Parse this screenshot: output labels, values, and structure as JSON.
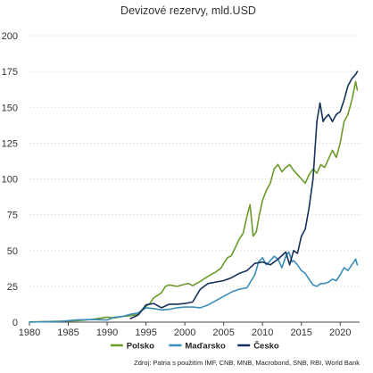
{
  "chart_data": {
    "type": "line",
    "title": "Devizové rezervy, mld.USD",
    "xlabel": "",
    "ylabel": "",
    "xlim": [
      1980,
      2022.5
    ],
    "ylim": [
      0,
      200
    ],
    "x_ticks": [
      1980,
      1985,
      1990,
      1995,
      2000,
      2005,
      2010,
      2015,
      2020
    ],
    "y_ticks": [
      0,
      25,
      50,
      75,
      100,
      125,
      150,
      175,
      200
    ],
    "grid": "horizontal",
    "legend_position": "bottom",
    "source": "Zdroj: Patria s použitím IMF, CNB, MNB, Macrobond, SNB, RBI, World Bank",
    "colors": {
      "Polsko": "#6a9a2a",
      "Maďarsko": "#3a8db8",
      "Česko": "#15305a"
    },
    "series": [
      {
        "name": "Polsko",
        "points": [
          [
            1980,
            0.1
          ],
          [
            1983,
            0.5
          ],
          [
            1986,
            1.0
          ],
          [
            1988,
            1.8
          ],
          [
            1990,
            3.5
          ],
          [
            1991,
            3.0
          ],
          [
            1992,
            4.0
          ],
          [
            1993,
            4.5
          ],
          [
            1994,
            5.5
          ],
          [
            1995,
            11.0
          ],
          [
            1995.5,
            13.0
          ],
          [
            1996,
            17.0
          ],
          [
            1997,
            20.5
          ],
          [
            1997.5,
            25.0
          ],
          [
            1998,
            26.0
          ],
          [
            1999,
            25.0
          ],
          [
            2000,
            26.5
          ],
          [
            2000.5,
            27.0
          ],
          [
            2001,
            25.5
          ],
          [
            2002,
            28.5
          ],
          [
            2003,
            32.0
          ],
          [
            2004,
            35.0
          ],
          [
            2004.7,
            38.0
          ],
          [
            2005,
            41.0
          ],
          [
            2005.5,
            45.0
          ],
          [
            2006,
            46.5
          ],
          [
            2006.5,
            52.0
          ],
          [
            2007,
            58.0
          ],
          [
            2007.5,
            62.0
          ],
          [
            2008,
            74.0
          ],
          [
            2008.4,
            82.0
          ],
          [
            2008.8,
            60.0
          ],
          [
            2009.2,
            63.0
          ],
          [
            2009.6,
            75.0
          ],
          [
            2010,
            85.0
          ],
          [
            2010.5,
            92.0
          ],
          [
            2011,
            97.0
          ],
          [
            2011.5,
            107.0
          ],
          [
            2012,
            110.0
          ],
          [
            2012.5,
            105.0
          ],
          [
            2013,
            108.0
          ],
          [
            2013.5,
            110.0
          ],
          [
            2014,
            106.0
          ],
          [
            2014.5,
            103.0
          ],
          [
            2015,
            100.0
          ],
          [
            2015.5,
            97.0
          ],
          [
            2016,
            103.0
          ],
          [
            2016.5,
            107.0
          ],
          [
            2017,
            104.0
          ],
          [
            2017.5,
            110.0
          ],
          [
            2018,
            108.0
          ],
          [
            2018.5,
            114.0
          ],
          [
            2019,
            120.0
          ],
          [
            2019.5,
            115.0
          ],
          [
            2020,
            125.0
          ],
          [
            2020.5,
            140.0
          ],
          [
            2021,
            145.0
          ],
          [
            2021.5,
            155.0
          ],
          [
            2022,
            168.0
          ],
          [
            2022.2,
            162.0
          ]
        ]
      },
      {
        "name": "Maďarsko",
        "points": [
          [
            1980,
            0.0
          ],
          [
            1984,
            0.5
          ],
          [
            1986,
            1.5
          ],
          [
            1988,
            1.8
          ],
          [
            1990,
            1.5
          ],
          [
            1991,
            3.5
          ],
          [
            1992,
            4.0
          ],
          [
            1993,
            5.5
          ],
          [
            1994,
            6.5
          ],
          [
            1995,
            10.0
          ],
          [
            1996,
            9.5
          ],
          [
            1997,
            8.5
          ],
          [
            1998,
            9.0
          ],
          [
            1999,
            10.0
          ],
          [
            2000,
            10.5
          ],
          [
            2001,
            10.5
          ],
          [
            2002,
            10.0
          ],
          [
            2003,
            12.0
          ],
          [
            2004,
            15.0
          ],
          [
            2005,
            18.0
          ],
          [
            2006,
            21.0
          ],
          [
            2007,
            23.0
          ],
          [
            2008,
            24.0
          ],
          [
            2009,
            33.0
          ],
          [
            2009.5,
            42.0
          ],
          [
            2010,
            45.0
          ],
          [
            2010.5,
            40.0
          ],
          [
            2011,
            43.0
          ],
          [
            2011.5,
            46.0
          ],
          [
            2012,
            44.0
          ],
          [
            2012.5,
            38.0
          ],
          [
            2013,
            46.0
          ],
          [
            2013.4,
            49.0
          ],
          [
            2013.8,
            42.0
          ],
          [
            2014,
            43.0
          ],
          [
            2014.5,
            40.0
          ],
          [
            2015,
            36.0
          ],
          [
            2015.5,
            34.0
          ],
          [
            2016,
            30.0
          ],
          [
            2016.5,
            26.0
          ],
          [
            2017,
            25.0
          ],
          [
            2017.5,
            27.0
          ],
          [
            2018,
            27.0
          ],
          [
            2018.5,
            28.0
          ],
          [
            2019,
            30.0
          ],
          [
            2019.5,
            29.0
          ],
          [
            2020,
            33.0
          ],
          [
            2020.5,
            38.0
          ],
          [
            2021,
            36.0
          ],
          [
            2021.5,
            40.0
          ],
          [
            2022,
            44.0
          ],
          [
            2022.2,
            40.0
          ]
        ]
      },
      {
        "name": "Česko",
        "points": [
          [
            1993,
            2.5
          ],
          [
            1994,
            5.0
          ],
          [
            1995,
            12.0
          ],
          [
            1996,
            13.0
          ],
          [
            1997,
            10.0
          ],
          [
            1998,
            12.5
          ],
          [
            1999,
            12.5
          ],
          [
            2000,
            13.0
          ],
          [
            2001,
            14.0
          ],
          [
            2002,
            23.0
          ],
          [
            2003,
            27.0
          ],
          [
            2004,
            28.0
          ],
          [
            2005,
            29.0
          ],
          [
            2006,
            31.0
          ],
          [
            2007,
            34.0
          ],
          [
            2008,
            36.0
          ],
          [
            2009,
            41.0
          ],
          [
            2010,
            42.0
          ],
          [
            2011,
            40.0
          ],
          [
            2012,
            44.0
          ],
          [
            2013,
            49.0
          ],
          [
            2013.5,
            40.0
          ],
          [
            2014,
            50.0
          ],
          [
            2014.5,
            48.0
          ],
          [
            2015,
            60.0
          ],
          [
            2015.5,
            65.0
          ],
          [
            2016,
            80.0
          ],
          [
            2016.5,
            100.0
          ],
          [
            2017,
            140.0
          ],
          [
            2017.4,
            153.0
          ],
          [
            2017.8,
            140.0
          ],
          [
            2018,
            142.0
          ],
          [
            2018.5,
            145.0
          ],
          [
            2019,
            140.0
          ],
          [
            2019.5,
            145.0
          ],
          [
            2020,
            147.0
          ],
          [
            2020.5,
            155.0
          ],
          [
            2021,
            165.0
          ],
          [
            2021.5,
            170.0
          ],
          [
            2022,
            173.0
          ],
          [
            2022.2,
            175.0
          ]
        ]
      }
    ]
  }
}
